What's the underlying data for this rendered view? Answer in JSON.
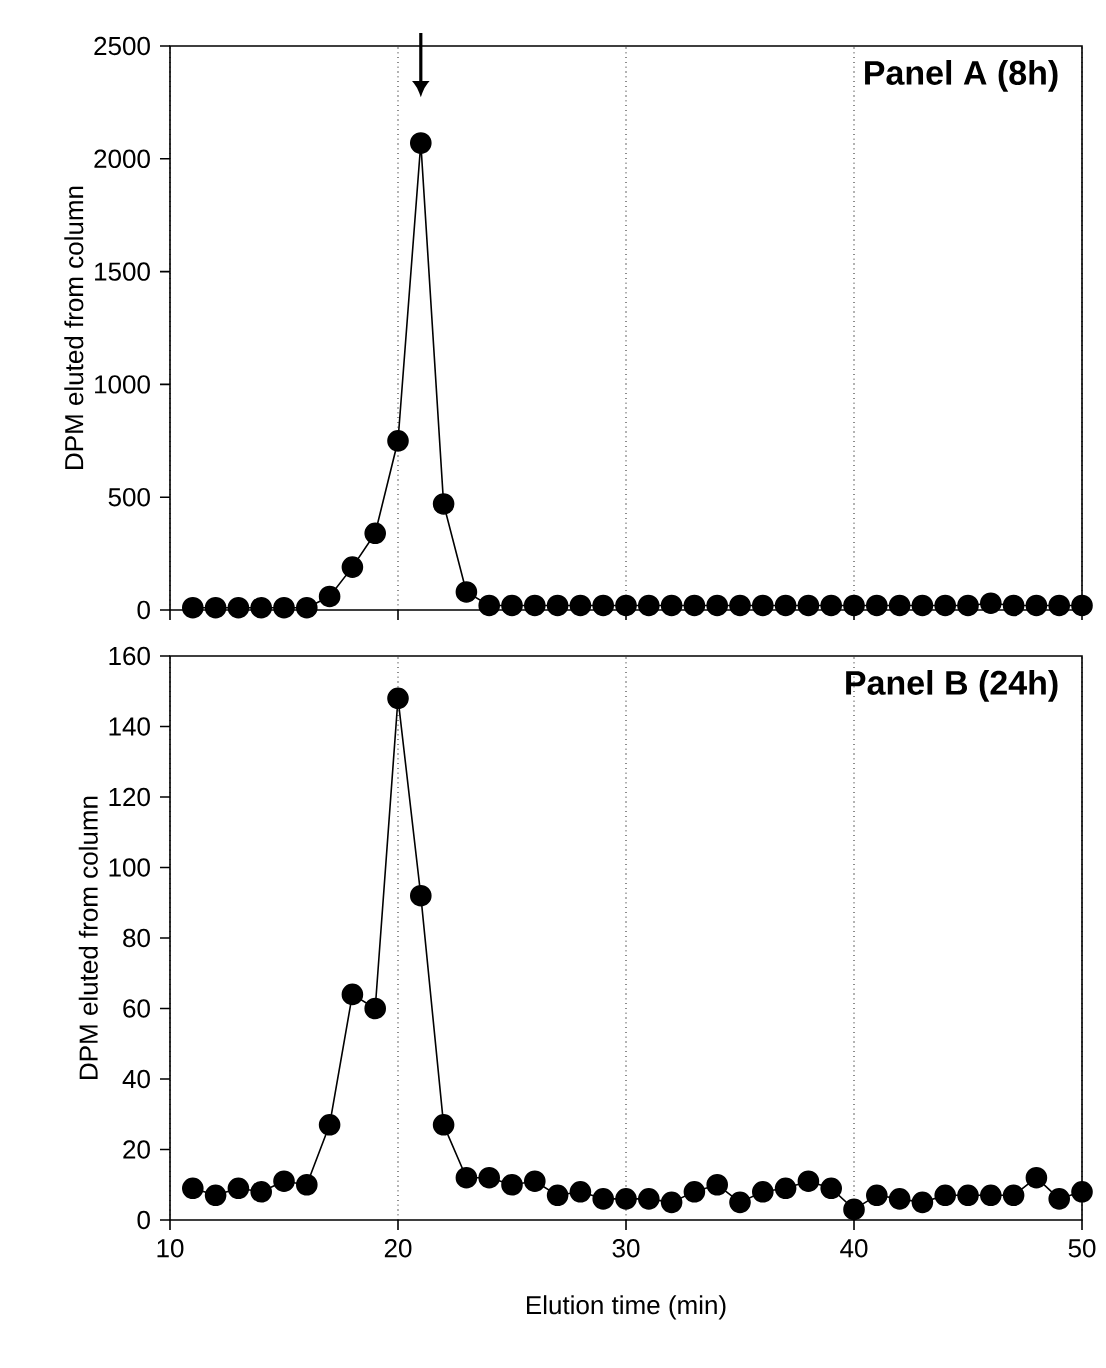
{
  "chart_data": [
    {
      "type": "line",
      "title": "Panel A (8h)",
      "ylabel": "DPM eluted from column",
      "xlim": [
        10,
        50
      ],
      "xticks": [
        10,
        20,
        30,
        40,
        50
      ],
      "ylim": [
        0,
        2500
      ],
      "yticks": [
        0,
        500,
        1000,
        1500,
        2000,
        2500
      ],
      "grid": "x",
      "marker": "circle",
      "line_style": "solid",
      "tick_labels": "y",
      "series": [
        {
          "color": "#000000",
          "x": [
            11,
            12,
            13,
            14,
            15,
            16,
            17,
            18,
            19,
            20,
            21,
            22,
            23,
            24,
            25,
            26,
            27,
            28,
            29,
            30,
            31,
            32,
            33,
            34,
            35,
            36,
            37,
            38,
            39,
            40,
            41,
            42,
            43,
            44,
            45,
            46,
            47,
            48,
            49,
            50
          ],
          "values": [
            10,
            10,
            10,
            10,
            10,
            10,
            60,
            190,
            340,
            750,
            2070,
            470,
            80,
            20,
            20,
            20,
            20,
            20,
            20,
            20,
            20,
            20,
            20,
            20,
            20,
            20,
            20,
            20,
            20,
            20,
            20,
            20,
            20,
            20,
            20,
            30,
            20,
            20,
            20,
            20
          ]
        }
      ]
    },
    {
      "type": "line",
      "title": "Panel B (24h)",
      "xlabel": "Elution time (min)",
      "ylabel": "DPM eluted from column",
      "xlim": [
        10,
        50
      ],
      "xticks": [
        10,
        20,
        30,
        40,
        50
      ],
      "ylim": [
        0,
        160
      ],
      "yticks": [
        0,
        20,
        40,
        60,
        80,
        100,
        120,
        140,
        160
      ],
      "grid": "x",
      "marker": "circle",
      "line_style": "solid",
      "series": [
        {
          "color": "#000000",
          "x": [
            11,
            12,
            13,
            14,
            15,
            16,
            17,
            18,
            19,
            20,
            21,
            22,
            23,
            24,
            25,
            26,
            27,
            28,
            29,
            30,
            31,
            32,
            33,
            34,
            35,
            36,
            37,
            38,
            39,
            40,
            41,
            42,
            43,
            44,
            45,
            46,
            47,
            48,
            49,
            50
          ],
          "values": [
            9,
            7,
            9,
            8,
            11,
            10,
            27,
            64,
            60,
            148,
            92,
            27,
            12,
            12,
            10,
            11,
            7,
            8,
            6,
            6,
            6,
            5,
            8,
            10,
            5,
            8,
            9,
            11,
            9,
            3,
            7,
            6,
            5,
            7,
            7,
            7,
            7,
            12,
            6,
            8
          ]
        }
      ]
    }
  ]
}
